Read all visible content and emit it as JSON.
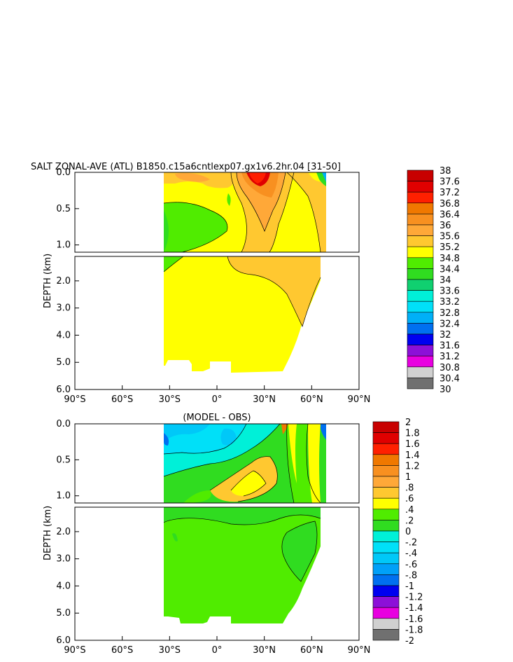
{
  "chart_data": [
    {
      "type": "heatmap",
      "title": "SALT ZONAL-AVE (ATL) B1850.c15a6cntlexp07.gx1v6.2hr.04 [31-50]",
      "ylabel": "DEPTH (km)",
      "x_ticks": [
        "90°S",
        "60°S",
        "30°S",
        "0°",
        "30°N",
        "60°N",
        "90°N"
      ],
      "y_ticks_upper": [
        "0.0",
        "0.5",
        "1.0"
      ],
      "y_ticks_lower": [
        "2.0",
        "3.0",
        "4.0",
        "5.0",
        "6.0"
      ],
      "xlim": [
        -90,
        90
      ],
      "ylim_upper_km": [
        0,
        1.1
      ],
      "ylim_lower_km": [
        1.1,
        6.0
      ],
      "colorbar": {
        "labels": [
          "38",
          "37.6",
          "37.2",
          "36.8",
          "36.4",
          "36",
          "35.6",
          "35.2",
          "34.8",
          "34.4",
          "34",
          "33.6",
          "33.2",
          "32.8",
          "32.4",
          "32",
          "31.6",
          "31.2",
          "30.8",
          "30.4",
          "30"
        ],
        "colors": [
          "#c80000",
          "#e00000",
          "#ff2000",
          "#f07800",
          "#f89020",
          "#ffa838",
          "#ffc830",
          "#ffff00",
          "#50ec00",
          "#30dc20",
          "#10d070",
          "#00f0d8",
          "#00e0f8",
          "#00b0f8",
          "#0070f0",
          "#0000f0",
          "#8c10d8",
          "#e800e0",
          "#d0d0d0",
          "#707070"
        ]
      }
    },
    {
      "type": "heatmap",
      "title": "(MODEL - OBS)",
      "ylabel": "DEPTH (km)",
      "x_ticks": [
        "90°S",
        "60°S",
        "30°S",
        "0°",
        "30°N",
        "60°N",
        "90°N"
      ],
      "y_ticks_upper": [
        "0.0",
        "0.5",
        "1.0"
      ],
      "y_ticks_lower": [
        "2.0",
        "3.0",
        "4.0",
        "5.0",
        "6.0"
      ],
      "xlim": [
        -90,
        90
      ],
      "ylim_upper_km": [
        0,
        1.1
      ],
      "ylim_lower_km": [
        1.1,
        6.0
      ],
      "colorbar": {
        "labels": [
          "2",
          "1.8",
          "1.6",
          "1.4",
          "1.2",
          "1",
          ".8",
          ".6",
          ".4",
          ".2",
          "0",
          "-.2",
          "-.4",
          "-.6",
          "-.8",
          "-1",
          "-1.2",
          "-1.4",
          "-1.6",
          "-1.8",
          "-2"
        ],
        "colors": [
          "#c80000",
          "#e00000",
          "#ff2000",
          "#f07800",
          "#f89020",
          "#ffa838",
          "#ffc830",
          "#ffff00",
          "#50ec00",
          "#30dc20",
          "#00f0d8",
          "#00e0f8",
          "#00c8f8",
          "#00a0f8",
          "#0070f0",
          "#0000f0",
          "#8c10d8",
          "#e800e0",
          "#d0d0d0",
          "#707070"
        ]
      }
    }
  ]
}
